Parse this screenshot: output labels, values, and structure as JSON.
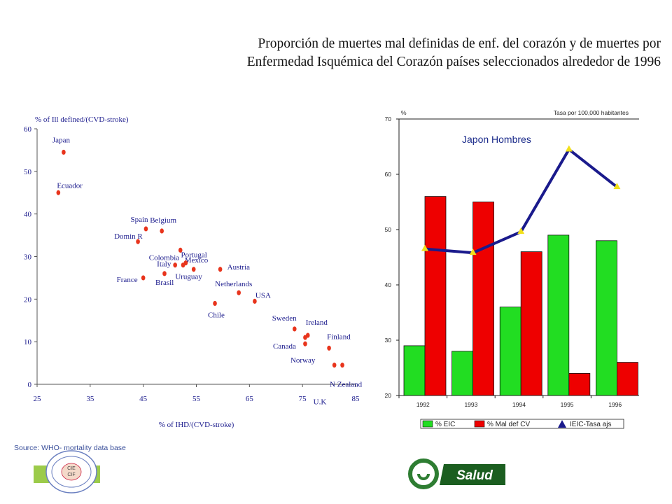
{
  "title": {
    "line1": "Proporción de muertes mal definidas de enf. del corazón y de muertes por",
    "line2": "Enfermedad Isquémica del Corazón países seleccionados alrededor de 1996"
  },
  "source": "Source: WHO- mortality data base",
  "logo": {
    "text": "Salud",
    "seal_lines": [
      "CIE",
      "CIF"
    ]
  },
  "colors": {
    "accent_green": "#9ccb4a",
    "dark_green": "#2e7d32",
    "navy": "#1a1a8c",
    "point_red": "#e8341c"
  },
  "chart_data": [
    {
      "type": "scatter",
      "ylabel": "% of Ill defined/(CVD-stroke)",
      "xlabel": "% of IHD/(CVD-stroke)",
      "xlim": [
        25,
        85
      ],
      "ylim": [
        0,
        60
      ],
      "xticks": [
        "25",
        "35",
        "45",
        "55",
        "65",
        "75",
        "85"
      ],
      "yticks": [
        "0",
        "10",
        "20",
        "30",
        "40",
        "50",
        "60"
      ],
      "points": [
        {
          "label": "Japan",
          "x": 30,
          "y": 54.5
        },
        {
          "label": "Ecuador",
          "x": 29,
          "y": 45
        },
        {
          "label": "Spain",
          "x": 45.5,
          "y": 36.5
        },
        {
          "label": "Belgium",
          "x": 48.5,
          "y": 36
        },
        {
          "label": "Domin R",
          "x": 44,
          "y": 33.5
        },
        {
          "label": "Colombia",
          "x": 52,
          "y": 31.5
        },
        {
          "label": "Portugal",
          "x": 52.5,
          "y": 28
        },
        {
          "label": "Mexico",
          "x": 54.5,
          "y": 27
        },
        {
          "label": "Italy",
          "x": 51,
          "y": 28
        },
        {
          "label": "Austria",
          "x": 59.5,
          "y": 27
        },
        {
          "label": "France",
          "x": 45,
          "y": 25
        },
        {
          "label": "Brasil",
          "x": 49,
          "y": 26
        },
        {
          "label": "Uruguay",
          "x": 53,
          "y": 28.5
        },
        {
          "label": "Netherlands",
          "x": 63,
          "y": 21.5
        },
        {
          "label": "USA",
          "x": 66,
          "y": 19.5
        },
        {
          "label": "Chile",
          "x": 58.5,
          "y": 19
        },
        {
          "label": "Sweden",
          "x": 73.5,
          "y": 13
        },
        {
          "label": "Ireland",
          "x": 76,
          "y": 11.5
        },
        {
          "label": "Canada",
          "x": 75.5,
          "y": 11
        },
        {
          "label": "Norway",
          "x": 75.5,
          "y": 9.5
        },
        {
          "label": "Finland",
          "x": 80,
          "y": 8.5
        },
        {
          "label": "N Zealand",
          "x": 82.5,
          "y": 4.5
        },
        {
          "label": "U.K",
          "x": 81,
          "y": 4.5
        }
      ]
    },
    {
      "type": "bar",
      "title": "Japon Hombres",
      "ylabel": "%",
      "ylabel_right": "Tasa por 100,000 habitantes",
      "categories": [
        "1992",
        "1993",
        "1994",
        "1995",
        "1996"
      ],
      "yticks": [
        "20",
        "30",
        "40",
        "50",
        "60",
        "70"
      ],
      "ylim": [
        20,
        70
      ],
      "series": [
        {
          "name": "% EIC",
          "type": "bar",
          "color": "#22dd22",
          "values": [
            29,
            28,
            36,
            49,
            48
          ]
        },
        {
          "name": "% Mal def CV",
          "type": "bar",
          "color": "#ee0000",
          "values": [
            56,
            55,
            46,
            24,
            26
          ]
        },
        {
          "name": "IEIC-Tasa ajs",
          "type": "line",
          "color": "#1a1a8c",
          "values": [
            46.5,
            45.8,
            49.6,
            64.5,
            57.7
          ]
        }
      ]
    }
  ]
}
